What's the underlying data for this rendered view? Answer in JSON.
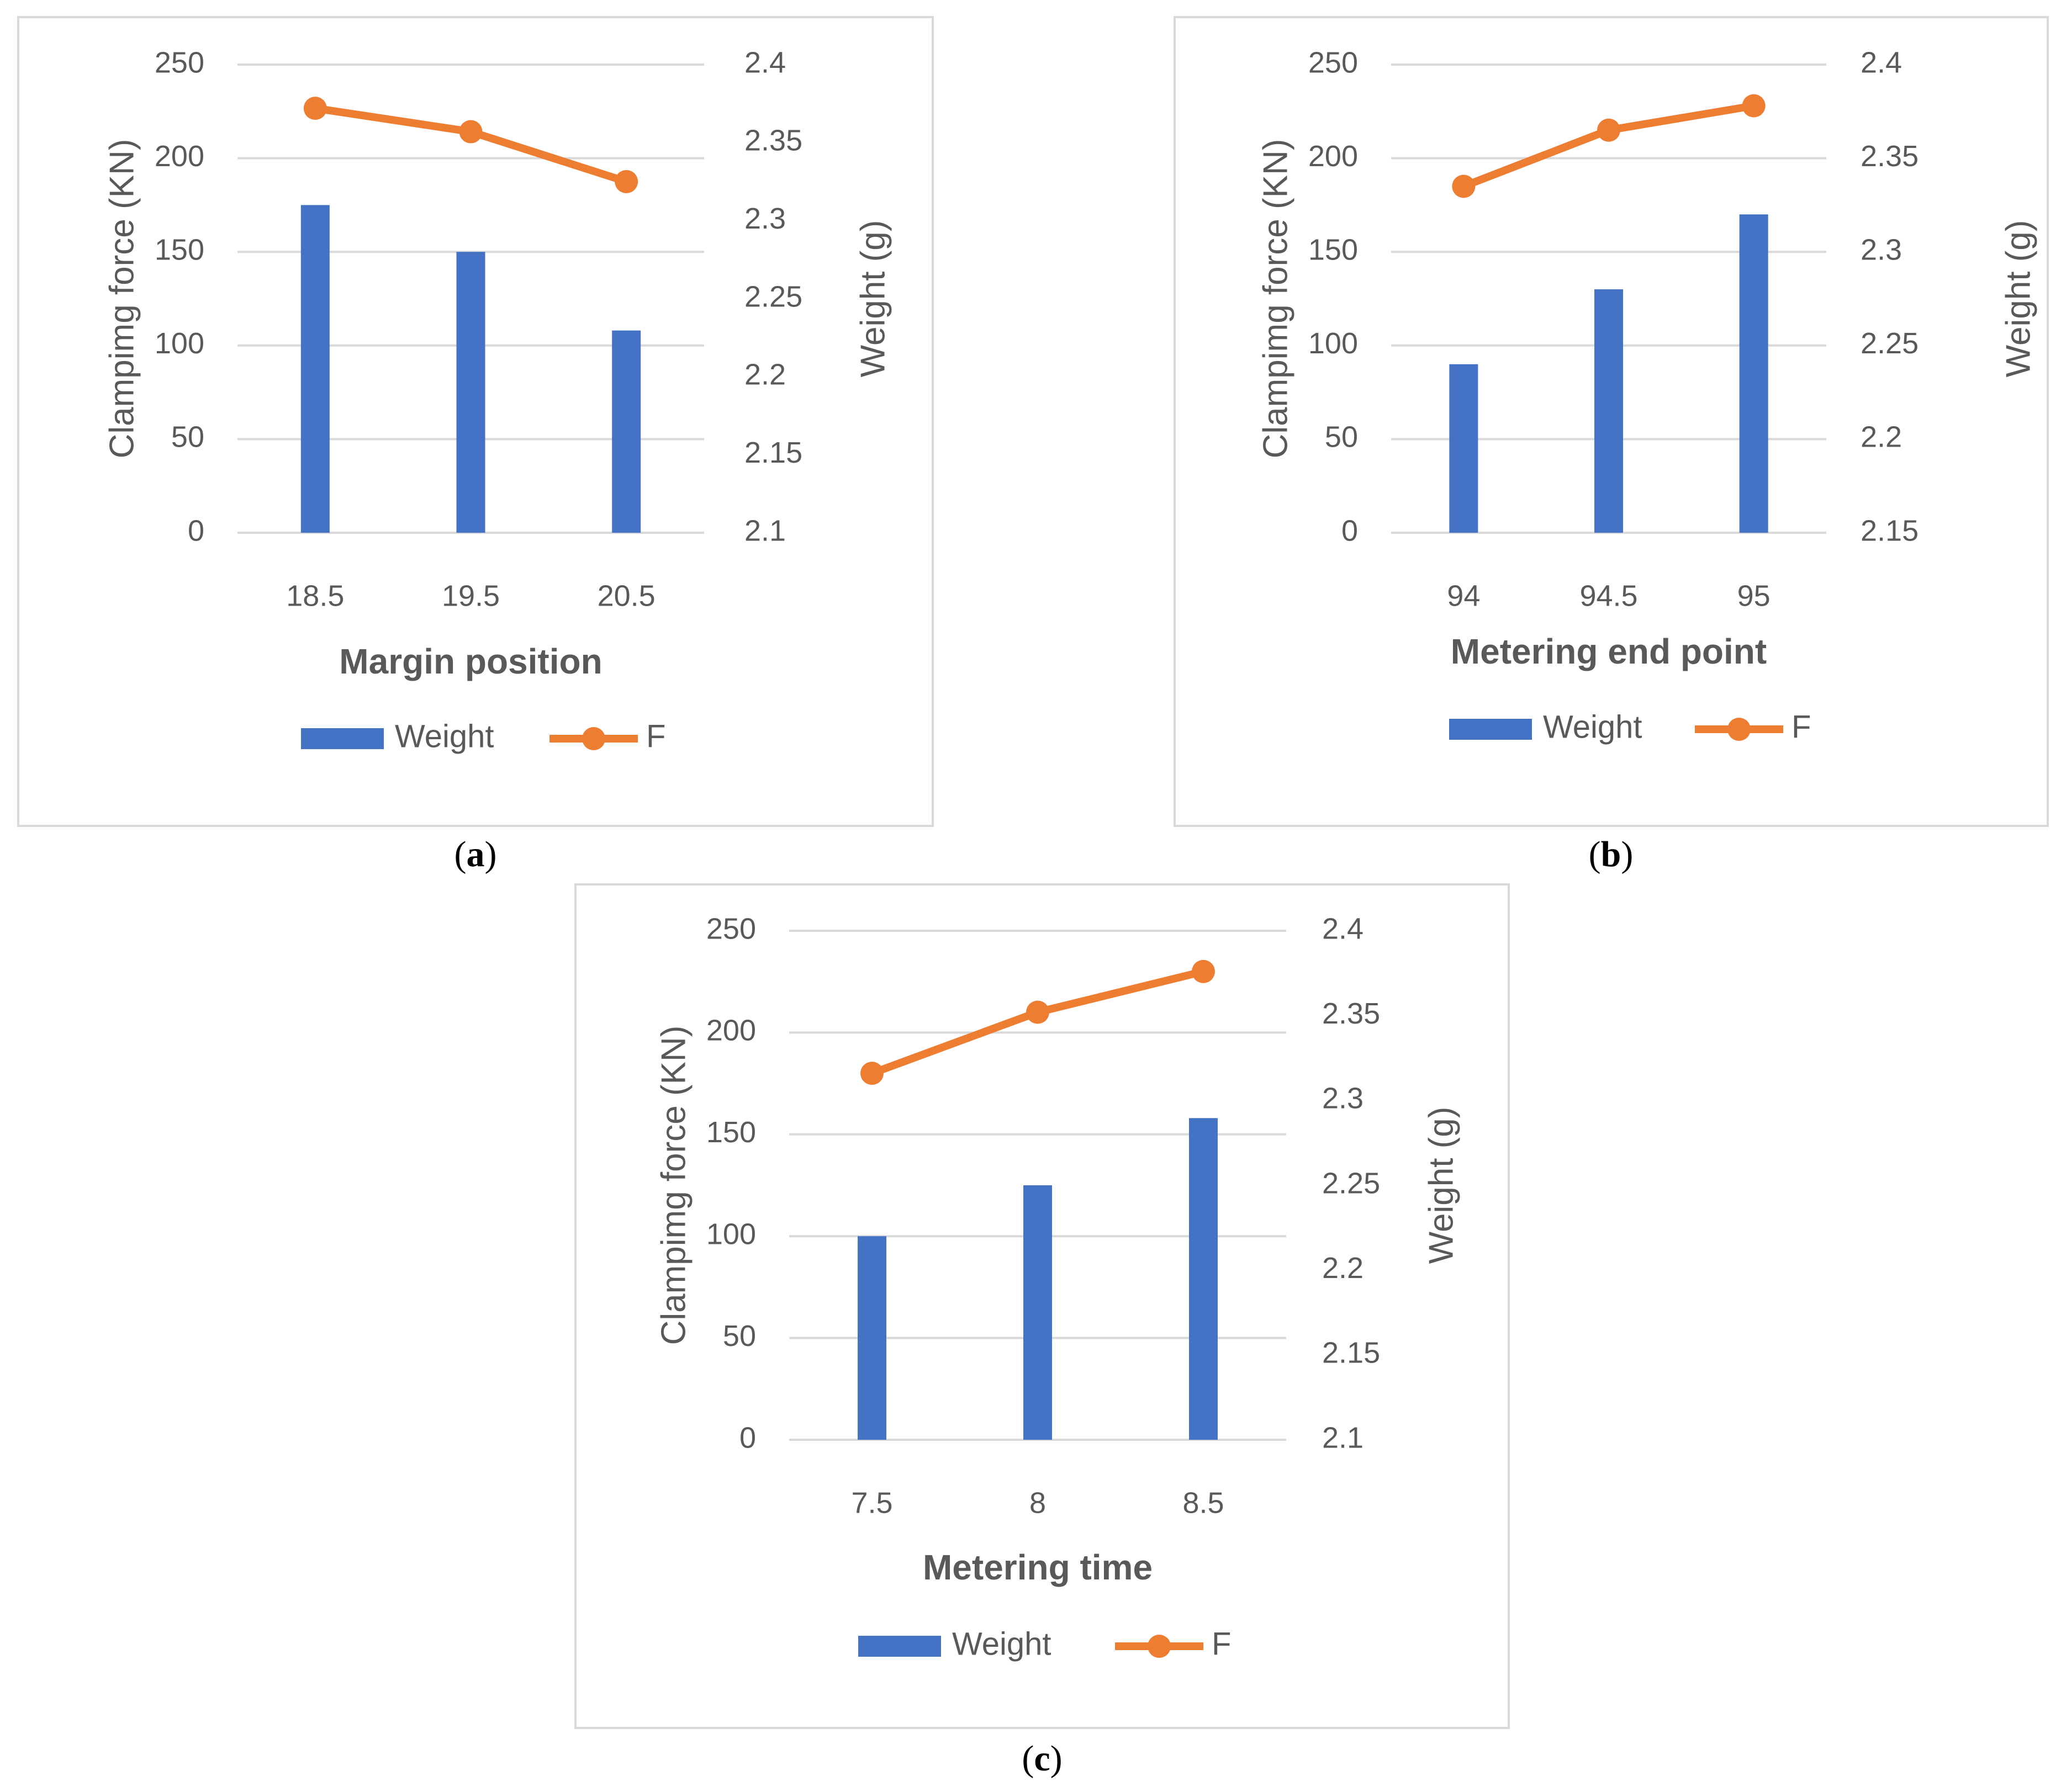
{
  "captions": [
    "a",
    "b",
    "c"
  ],
  "chart_data": [
    {
      "type": "bar",
      "categories": [
        "18.5",
        "19.5",
        "20.5"
      ],
      "xlabel": "Margin position",
      "ylabel": "Clampimg force (KN)",
      "y2label": "Weight (g)",
      "ylim": [
        0,
        250
      ],
      "y2lim": [
        2.1,
        2.4
      ],
      "yticks": [
        "0",
        "50",
        "100",
        "150",
        "200",
        "250"
      ],
      "y2ticks": [
        "2.1",
        "2.15",
        "2.2",
        "2.25",
        "2.3",
        "2.35",
        "2.4"
      ],
      "series": [
        {
          "name": "Weight",
          "kind": "bar",
          "axis": "left",
          "color": "#4472c4",
          "values": [
            175,
            150,
            108
          ]
        },
        {
          "name": "F",
          "kind": "line",
          "axis": "right",
          "color": "#ed7d31",
          "values": [
            2.372,
            2.357,
            2.325
          ]
        }
      ],
      "legend": "bottom",
      "grid": true
    },
    {
      "type": "bar",
      "categories": [
        "94",
        "94.5",
        "95"
      ],
      "xlabel": "Metering end point",
      "ylabel": "Clampimg force (KN)",
      "y2label": "Weight (g)",
      "ylim": [
        0,
        250
      ],
      "y2lim": [
        2.15,
        2.4
      ],
      "yticks": [
        "0",
        "50",
        "100",
        "150",
        "200",
        "250"
      ],
      "y2ticks": [
        "2.15",
        "2.2",
        "2.25",
        "2.3",
        "2.35",
        "2.4"
      ],
      "series": [
        {
          "name": "Weight",
          "kind": "bar",
          "axis": "left",
          "color": "#4472c4",
          "values": [
            90,
            130,
            170
          ]
        },
        {
          "name": "F",
          "kind": "line",
          "axis": "right",
          "color": "#ed7d31",
          "values": [
            2.335,
            2.365,
            2.378
          ]
        }
      ],
      "legend": "bottom",
      "grid": true
    },
    {
      "type": "bar",
      "categories": [
        "7.5",
        "8",
        "8.5"
      ],
      "xlabel": "Metering time",
      "ylabel": "Clampimg force (KN)",
      "y2label": "Weight (g)",
      "ylim": [
        0,
        250
      ],
      "y2lim": [
        2.1,
        2.4
      ],
      "yticks": [
        "0",
        "50",
        "100",
        "150",
        "200",
        "250"
      ],
      "y2ticks": [
        "2.1",
        "2.15",
        "2.2",
        "2.25",
        "2.3",
        "2.35",
        "2.4"
      ],
      "series": [
        {
          "name": "Weight",
          "kind": "bar",
          "axis": "left",
          "color": "#4472c4",
          "values": [
            100,
            125,
            158
          ]
        },
        {
          "name": "F",
          "kind": "line",
          "axis": "right",
          "color": "#ed7d31",
          "values": [
            2.316,
            2.352,
            2.376
          ]
        }
      ],
      "legend": "bottom",
      "grid": true
    }
  ]
}
